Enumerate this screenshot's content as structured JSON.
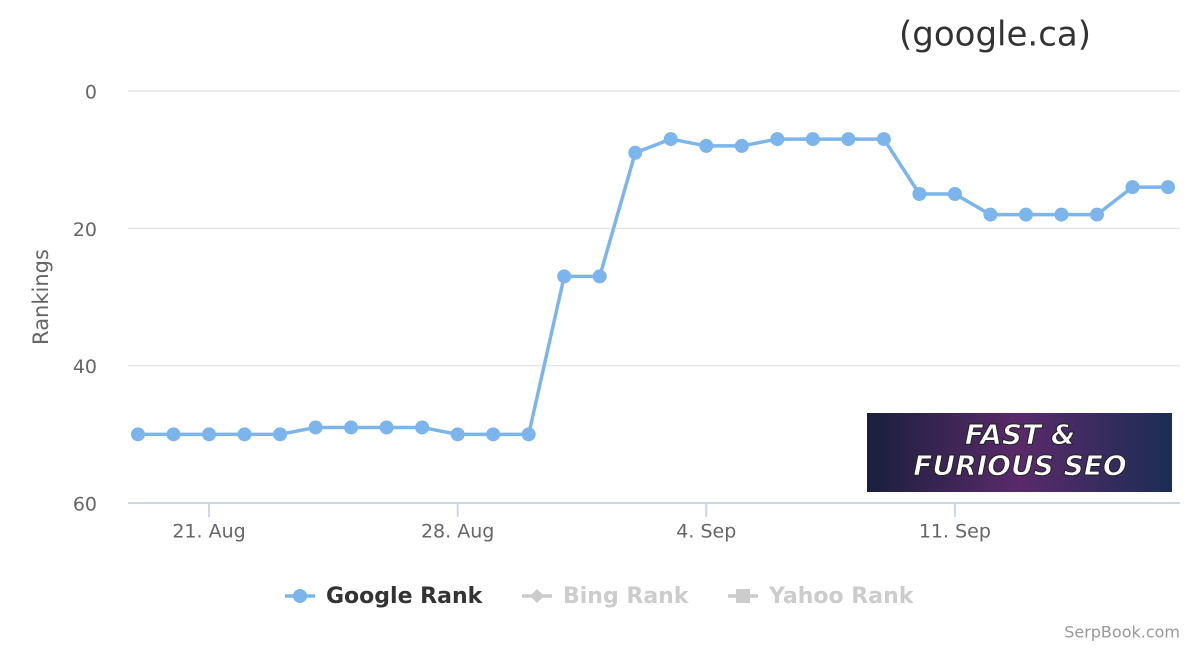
{
  "chart_data": {
    "type": "line",
    "title": "(google.ca)",
    "y_label": "Rankings",
    "x": [
      "19. Aug",
      "20. Aug",
      "21. Aug",
      "22. Aug",
      "23. Aug",
      "24. Aug",
      "25. Aug",
      "26. Aug",
      "27. Aug",
      "28. Aug",
      "29. Aug",
      "30. Aug",
      "31. Aug",
      "1. Sep",
      "2. Sep",
      "3. Sep",
      "4. Sep",
      "5. Sep",
      "6. Sep",
      "7. Sep",
      "8. Sep",
      "9. Sep",
      "10. Sep",
      "11. Sep",
      "12. Sep",
      "13. Sep",
      "14. Sep",
      "15. Sep",
      "16. Sep",
      "17. Sep"
    ],
    "xticks": [
      "21. Aug",
      "28. Aug",
      "4. Sep",
      "11. Sep"
    ],
    "ylim": [
      0,
      60
    ],
    "yticks": [
      0,
      20,
      40,
      60
    ],
    "y_reversed": true,
    "grid": true,
    "series": [
      {
        "name": "Google Rank",
        "color": "#7cb5ec",
        "marker": "circle",
        "visible": true,
        "values": [
          50,
          50,
          50,
          50,
          50,
          49,
          49,
          49,
          49,
          50,
          50,
          50,
          27,
          27,
          9,
          7,
          8,
          8,
          7,
          7,
          7,
          7,
          15,
          15,
          18,
          18,
          18,
          18,
          14,
          14
        ]
      },
      {
        "name": "Bing Rank",
        "color": "#cccccc",
        "marker": "diamond",
        "visible": false,
        "values": [
          null,
          null,
          null,
          null,
          null,
          null,
          null,
          null,
          null,
          null,
          null,
          null,
          null,
          null,
          null,
          null,
          null,
          null,
          null,
          null,
          null,
          null,
          null,
          null,
          null,
          null,
          null,
          null,
          null,
          null
        ]
      },
      {
        "name": "Yahoo Rank",
        "color": "#cccccc",
        "marker": "square",
        "visible": false,
        "values": [
          null,
          null,
          null,
          null,
          null,
          null,
          null,
          null,
          null,
          null,
          null,
          null,
          null,
          null,
          null,
          null,
          null,
          null,
          null,
          null,
          null,
          null,
          null,
          null,
          null,
          null,
          null,
          null,
          null,
          null
        ]
      }
    ],
    "logo": {
      "line1": "FAST &",
      "line2": "FURIOUS SEO"
    },
    "credit": "SerpBook.com"
  }
}
